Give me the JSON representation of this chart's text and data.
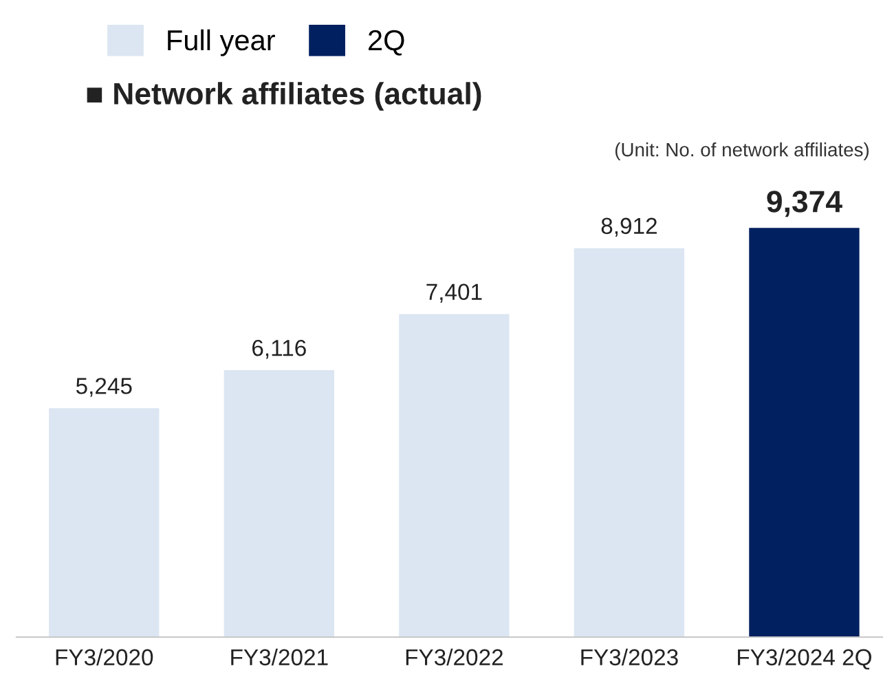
{
  "chart_data": {
    "type": "bar",
    "title": "■ Network affiliates (actual)",
    "annotations": [
      "(Unit: No. of network affiliates)"
    ],
    "categories": [
      "FY3/2020",
      "FY3/2021",
      "FY3/2022",
      "FY3/2023",
      "FY3/2024 2Q"
    ],
    "series": [
      {
        "name": "Full year",
        "color": "#dce6f2",
        "values": [
          5245,
          6116,
          7401,
          8912,
          null
        ],
        "value_labels": [
          "5,245",
          "6,116",
          "7,401",
          "8,912",
          null
        ]
      },
      {
        "name": "2Q",
        "color": "#002060",
        "values": [
          null,
          null,
          null,
          null,
          9374
        ],
        "value_labels": [
          null,
          null,
          null,
          null,
          "9,374"
        ]
      }
    ],
    "legend": "top left",
    "grid": false
  }
}
